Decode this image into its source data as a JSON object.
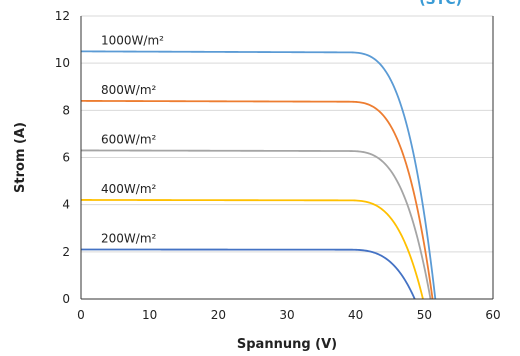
{
  "chart_data": {
    "type": "line",
    "title": "(STC)",
    "xlabel": "Spannung (V)",
    "ylabel": "Strom (A)",
    "xlim": [
      0,
      60
    ],
    "ylim": [
      0,
      12
    ],
    "x_ticks": [
      0,
      10,
      20,
      30,
      40,
      50,
      60
    ],
    "y_ticks": [
      0,
      2,
      4,
      6,
      8,
      10,
      12
    ],
    "grid": "horizontal",
    "colors": {
      "title": "#3a9bd5",
      "axis": "#333333",
      "grid": "#d9d9d9"
    },
    "series": [
      {
        "label": "1000W/m²",
        "color": "#5b9bd5",
        "isc": 10.5,
        "voc": 51.6,
        "knee_start": 38.5
      },
      {
        "label": "800W/m²",
        "color": "#ed7d31",
        "isc": 8.4,
        "voc": 51.2,
        "knee_start": 38.5
      },
      {
        "label": "600W/m²",
        "color": "#a5a5a5",
        "isc": 6.3,
        "voc": 50.9,
        "knee_start": 38.5
      },
      {
        "label": "400W/m²",
        "color": "#ffc000",
        "isc": 4.2,
        "voc": 49.8,
        "knee_start": 38.5
      },
      {
        "label": "200W/m²",
        "color": "#4472c4",
        "isc": 2.1,
        "voc": 48.6,
        "knee_start": 38.5
      }
    ]
  }
}
